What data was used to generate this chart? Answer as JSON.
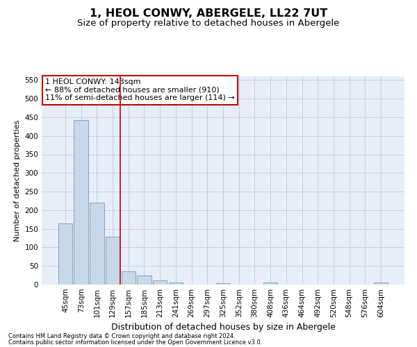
{
  "title": "1, HEOL CONWY, ABERGELE, LL22 7UT",
  "subtitle": "Size of property relative to detached houses in Abergele",
  "xlabel": "Distribution of detached houses by size in Abergele",
  "ylabel": "Number of detached properties",
  "categories": [
    "45sqm",
    "73sqm",
    "101sqm",
    "129sqm",
    "157sqm",
    "185sqm",
    "213sqm",
    "241sqm",
    "269sqm",
    "297sqm",
    "325sqm",
    "352sqm",
    "380sqm",
    "408sqm",
    "436sqm",
    "464sqm",
    "492sqm",
    "520sqm",
    "548sqm",
    "576sqm",
    "604sqm"
  ],
  "values": [
    165,
    443,
    221,
    128,
    36,
    25,
    11,
    5,
    0,
    0,
    4,
    0,
    0,
    5,
    0,
    0,
    0,
    0,
    0,
    0,
    5
  ],
  "bar_color": "#c8d8e8",
  "bar_edge_color": "#7799bb",
  "bar_linewidth": 0.6,
  "grid_color": "#bbccdd",
  "red_line_x": 3.5,
  "annotation_line1": "1 HEOL CONWY: 143sqm",
  "annotation_line2": "← 88% of detached houses are smaller (910)",
  "annotation_line3": "11% of semi-detached houses are larger (114) →",
  "annotation_box_color": "#ffffff",
  "annotation_box_edge": "#cc0000",
  "ylim": [
    0,
    560
  ],
  "yticks": [
    0,
    50,
    100,
    150,
    200,
    250,
    300,
    350,
    400,
    450,
    500,
    550
  ],
  "footnote1": "Contains HM Land Registry data © Crown copyright and database right 2024.",
  "footnote2": "Contains public sector information licensed under the Open Government Licence v3.0.",
  "bg_color": "#e8eef8",
  "title_fontsize": 11.5,
  "subtitle_fontsize": 9.5,
  "tick_fontsize": 7.5,
  "ylabel_fontsize": 8,
  "xlabel_fontsize": 9,
  "annotation_fontsize": 8,
  "footnote_fontsize": 6
}
